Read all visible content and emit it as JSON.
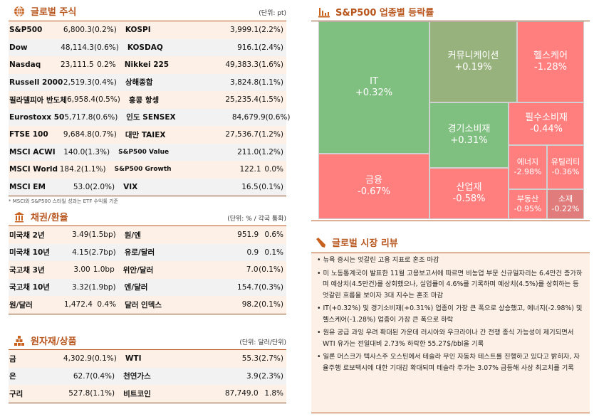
{
  "global_stocks": {
    "title": "글로벌 주식",
    "unit": "(단위: pt)",
    "icon": "globe-icon",
    "rows": [
      {
        "n1": "S&P500",
        "v1": "6,800.3",
        "p1": "(0.2%)",
        "n2": "KOSPI",
        "v2": "3,999.1",
        "p2": "(2.2%)"
      },
      {
        "n1": "Dow",
        "v1": "48,114.3",
        "p1": "(0.6%)",
        "n2": "KOSDAQ",
        "v2": "916.1",
        "p2": "(2.4%)"
      },
      {
        "n1": "Nasdaq",
        "v1": "23,111.5",
        "p1": "0.2%",
        "n2": "Nikkei 225",
        "v2": "49,383.3",
        "p2": "(1.6%)"
      },
      {
        "n1": "Russell 2000",
        "v1": "2,519.3",
        "p1": "(0.4%)",
        "n2": "상해종합",
        "v2": "3,824.8",
        "p2": "(1.1%)"
      },
      {
        "n1": "필라델피아 반도체",
        "v1": "6,958.4",
        "p1": "(0.5%)",
        "n2": "홍콩 항셍",
        "v2": "25,235.4",
        "p2": "(1.5%)"
      },
      {
        "n1": "Eurostoxx 50",
        "v1": "5,717.8",
        "p1": "(0.6%)",
        "n2": "인도 SENSEX",
        "v2": "84,679.9",
        "p2": "(0.6%)"
      },
      {
        "n1": "FTSE 100",
        "v1": "9,684.8",
        "p1": "(0.7%)",
        "n2": "대만 TAIEX",
        "v2": "27,536.7",
        "p2": "(1.2%)"
      },
      {
        "n1": "MSCI ACWI",
        "v1": "140.0",
        "p1": "(1.3%)",
        "n2": "S&P500 Value",
        "v2": "211.0",
        "p2": "(1.2%)"
      },
      {
        "n1": "MSCI World",
        "v1": "184.2",
        "p1": "(1.1%)",
        "n2": "S&P500 Growth",
        "v2": "122.1",
        "p2": "0.0%"
      },
      {
        "n1": "MSCI EM",
        "v1": "53.0",
        "p1": "(2.0%)",
        "n2": "VIX",
        "v2": "16.5",
        "p2": "(0.1%)"
      }
    ],
    "footnote": "* MSCI와 S&P500 스타일 성과는 ETF 수익률 기준"
  },
  "bonds_fx": {
    "title": "채권/환율",
    "unit": "(단위: % / 각국 통화)",
    "icon": "bank-icon",
    "rows": [
      {
        "n1": "미국채 2년",
        "v1": "3.49",
        "p1": "(1.5bp)",
        "n2": "원/엔",
        "v2": "951.9",
        "p2": "0.6%"
      },
      {
        "n1": "미국채 10년",
        "v1": "4.15",
        "p1": "(2.7bp)",
        "n2": "유로/달러",
        "v2": "0.9",
        "p2": "0.1%"
      },
      {
        "n1": "국고채 3년",
        "v1": "3.00",
        "p1": "1.0bp",
        "n2": "위안/달러",
        "v2": "7.0",
        "p2": "(0.1%)"
      },
      {
        "n1": "국고채 10년",
        "v1": "3.32",
        "p1": "(1.9bp)",
        "n2": "엔/달러",
        "v2": "154.7",
        "p2": "(0.3%)"
      },
      {
        "n1": "원/달러",
        "v1": "1,472.4",
        "p1": "0.4%",
        "n2": "달러 인덱스",
        "v2": "98.2",
        "p2": "(0.1%)"
      }
    ]
  },
  "commodities": {
    "title": "원자재/상품",
    "unit": "(단위: 달러/단위)",
    "icon": "gold-bars-icon",
    "rows": [
      {
        "n1": "금",
        "v1": "4,302.9",
        "p1": "(0.1%)",
        "n2": "WTI",
        "v2": "55.3",
        "p2": "(2.7%)"
      },
      {
        "n1": "은",
        "v1": "62.7",
        "p1": "(0.4%)",
        "n2": "천연가스",
        "v2": "3.9",
        "p2": "(2.3%)"
      },
      {
        "n1": "구리",
        "v1": "527.8",
        "p1": "(1.1%)",
        "n2": "비트코인",
        "v2": "87,749.0",
        "p2": "1.8%"
      }
    ]
  },
  "sector": {
    "title": "S&P500 업종별 등락률",
    "icon": "bar-chart-icon",
    "colors": {
      "up": "#7fbf7f",
      "up_small": "#98b27e",
      "down": "#ff7f7f",
      "down_small": "#e07c7c"
    },
    "cells": [
      {
        "name": "IT",
        "value": "+0.32%",
        "color": "#7fbf7f"
      },
      {
        "name": "금융",
        "value": "-0.67%",
        "color": "#ff7f7f"
      },
      {
        "name": "커뮤니케이션",
        "value": "+0.19%",
        "color": "#98b27e"
      },
      {
        "name": "헬스케어",
        "value": "-1.28%",
        "color": "#ff7f7f"
      },
      {
        "name": "경기소비재",
        "value": "+0.31%",
        "color": "#7fbf7f"
      },
      {
        "name": "산업재",
        "value": "-0.58%",
        "color": "#ff7f7f"
      },
      {
        "name": "필수소비재",
        "value": "-0.44%",
        "color": "#ff7f7f"
      },
      {
        "name": "에너지",
        "value": "-2.98%",
        "color": "#ff7f7f"
      },
      {
        "name": "유틸리티",
        "value": "-0.36%",
        "color": "#ff7f7f"
      },
      {
        "name": "부동산",
        "value": "-0.95%",
        "color": "#ff7f7f"
      },
      {
        "name": "소재",
        "value": "-0.22%",
        "color": "#e07c7c"
      }
    ]
  },
  "review": {
    "title": "글로벌 시장 리뷰",
    "icon": "pen-icon",
    "items": [
      "• 뉴욕 증시는 엇갈린 고용 지표로 혼조 마감",
      "• 미 노동통계국이 발표한 11월 고용보고서에 따르면 비농업 부문 신규일자리는 6.4만건 증가하며 예상치(4.5만건)를 상회했으나, 실업률이 4.6%를 기록하며 예상치(4.5%)를 상회하는 등 엇갈린 흐름을 보이자 3대 지수는 혼조 마감",
      "• IT(+0.32%) 및 경기소비재(+0.31%) 업종이 가장 큰 폭으로 상승했고, 에너지(-2.98%) 및 헬스케어(-1.28%) 업종이 가장 큰 폭으로 하락",
      "• 원유 공급 과잉 우려 확대된 가운데 러시아와 우크라이나 간 전쟁 종식 가능성이 제기되면서 WTI 유가는 전일대비 2.73% 하락한 55.27$/bbl을 기록",
      "• 일론 머스크가 텍사스주 오스틴에서 테슬라 무인 자동차 테스트를 진행하고 있다고 밝히자, 자율주행 로보택시에 대한 기대감 확대되며 테슬라 주가는 3.07% 급등해 사상 최고치를 기록"
    ]
  }
}
